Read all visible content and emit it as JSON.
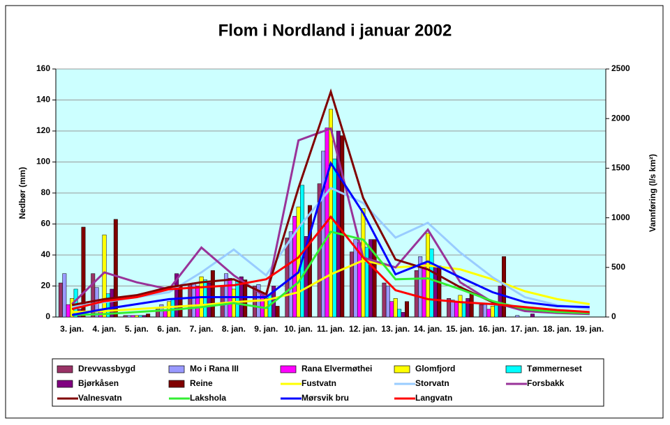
{
  "chart_data": {
    "type": "bar",
    "title": "Flom i Nordland i januar 2002",
    "y_label": "Nedbør (mm)",
    "y2_label": "Vannføring (l/s km²)",
    "categories": [
      "3. jan.",
      "4. jan.",
      "5. jan.",
      "6. jan.",
      "7. jan.",
      "8. jan.",
      "9. jan.",
      "10. jan.",
      "11. jan.",
      "12. jan.",
      "13. jan.",
      "14. jan.",
      "15. jan.",
      "16. jan.",
      "17. jan.",
      "18. jan.",
      "19. jan."
    ],
    "ylim": [
      0,
      160
    ],
    "yticks": [
      0,
      20,
      40,
      60,
      80,
      100,
      120,
      140,
      160
    ],
    "y2lim": [
      0,
      2500
    ],
    "y2ticks": [
      0,
      500,
      1000,
      1500,
      2000,
      2500
    ],
    "grid": true,
    "series": [
      {
        "name": "Drevvassbygd",
        "type": "bar",
        "color": "#993366",
        "values": [
          22,
          28,
          1,
          5,
          21,
          20,
          20,
          51,
          86,
          42,
          22,
          30,
          12,
          8,
          0,
          0,
          0
        ]
      },
      {
        "name": "Mo i Rana III",
        "type": "bar",
        "color": "#9999ff",
        "values": [
          28,
          19,
          1,
          8,
          22,
          28,
          21,
          55,
          107,
          50,
          20,
          39,
          11,
          8,
          1,
          0,
          0
        ]
      },
      {
        "name": "Rana Elvermøthei",
        "type": "bar",
        "color": "#ff00ff",
        "values": [
          8,
          5,
          1,
          4,
          20,
          25,
          15,
          65,
          122,
          48,
          10,
          35,
          10,
          5,
          0,
          0,
          0
        ]
      },
      {
        "name": "Glomfjord",
        "type": "bar",
        "color": "#ffff00",
        "values": [
          12,
          53,
          1,
          10,
          26,
          18,
          12,
          71,
          134,
          70,
          12,
          54,
          14,
          7,
          0,
          0,
          0
        ]
      },
      {
        "name": "Tømmerneset",
        "type": "bar",
        "color": "#00ffff",
        "values": [
          18,
          15,
          1,
          12,
          24,
          23,
          14,
          85,
          102,
          45,
          5,
          44,
          10,
          8,
          0,
          0,
          0
        ]
      },
      {
        "name": "Bjørkåsen",
        "type": "bar",
        "color": "#800080",
        "values": [
          5,
          18,
          1,
          28,
          22,
          26,
          20,
          52,
          120,
          50,
          3,
          33,
          12,
          20,
          2,
          0,
          0
        ]
      },
      {
        "name": "Reine",
        "type": "bar",
        "color": "#800000",
        "values": [
          58,
          63,
          2,
          20,
          30,
          24,
          7,
          72,
          117,
          50,
          10,
          33,
          15,
          39,
          0,
          0,
          0
        ]
      },
      {
        "name": "Fustvatn",
        "type": "line",
        "axis": "y2",
        "color": "#ffff00",
        "values": [
          50,
          60,
          80,
          100,
          120,
          150,
          170,
          250,
          430,
          570,
          500,
          520,
          480,
          380,
          260,
          180,
          130
        ]
      },
      {
        "name": "Storvatn",
        "type": "line",
        "axis": "y2",
        "color": "#99ccff",
        "values": [
          100,
          150,
          200,
          250,
          450,
          680,
          420,
          900,
          1300,
          1150,
          800,
          950,
          650,
          400,
          200,
          120,
          80
        ]
      },
      {
        "name": "Forsbakk",
        "type": "line",
        "axis": "y2",
        "color": "#993399",
        "values": [
          130,
          450,
          350,
          280,
          700,
          420,
          200,
          1780,
          1900,
          600,
          500,
          880,
          350,
          150,
          60,
          40,
          30
        ]
      },
      {
        "name": "Valnesvatn",
        "type": "line",
        "axis": "y2",
        "color": "#800000",
        "values": [
          120,
          180,
          220,
          300,
          350,
          380,
          230,
          1300,
          2270,
          1200,
          580,
          480,
          300,
          150,
          80,
          50,
          40
        ]
      },
      {
        "name": "Lakshola",
        "type": "line",
        "axis": "y2",
        "color": "#33ee33",
        "values": [
          20,
          30,
          50,
          70,
          100,
          140,
          90,
          350,
          860,
          780,
          380,
          390,
          280,
          160,
          80,
          50,
          40
        ]
      },
      {
        "name": "Mørsvik bru",
        "type": "line",
        "axis": "y2",
        "color": "#0000ff",
        "values": [
          20,
          80,
          130,
          180,
          200,
          200,
          200,
          450,
          1550,
          1050,
          430,
          560,
          400,
          250,
          150,
          110,
          100
        ]
      },
      {
        "name": "Langvatn",
        "type": "line",
        "axis": "y2",
        "color": "#ff0000",
        "values": [
          80,
          160,
          200,
          280,
          300,
          320,
          380,
          600,
          1010,
          600,
          270,
          180,
          150,
          130,
          100,
          70,
          50
        ]
      }
    ]
  }
}
